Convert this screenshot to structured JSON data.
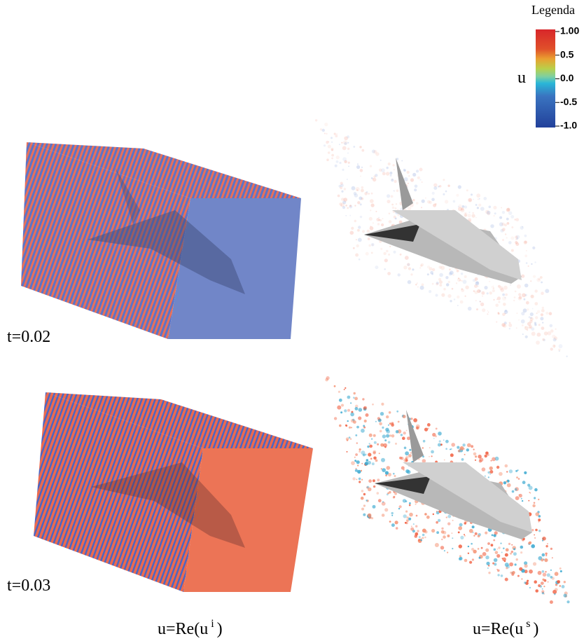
{
  "legend": {
    "title": "Legenda",
    "variable": "u",
    "ticks": [
      "1.00",
      "0.5",
      "0.0",
      "-0.5",
      "-1.0"
    ]
  },
  "panels": [
    {
      "label": "t=0.02"
    },
    {
      "label": "t=0.03"
    }
  ],
  "captions": [
    {
      "text": "u=Re(u",
      "sup": "i",
      "close": ")"
    },
    {
      "text": "u=Re(u",
      "sup": "s",
      "close": ")"
    }
  ]
}
